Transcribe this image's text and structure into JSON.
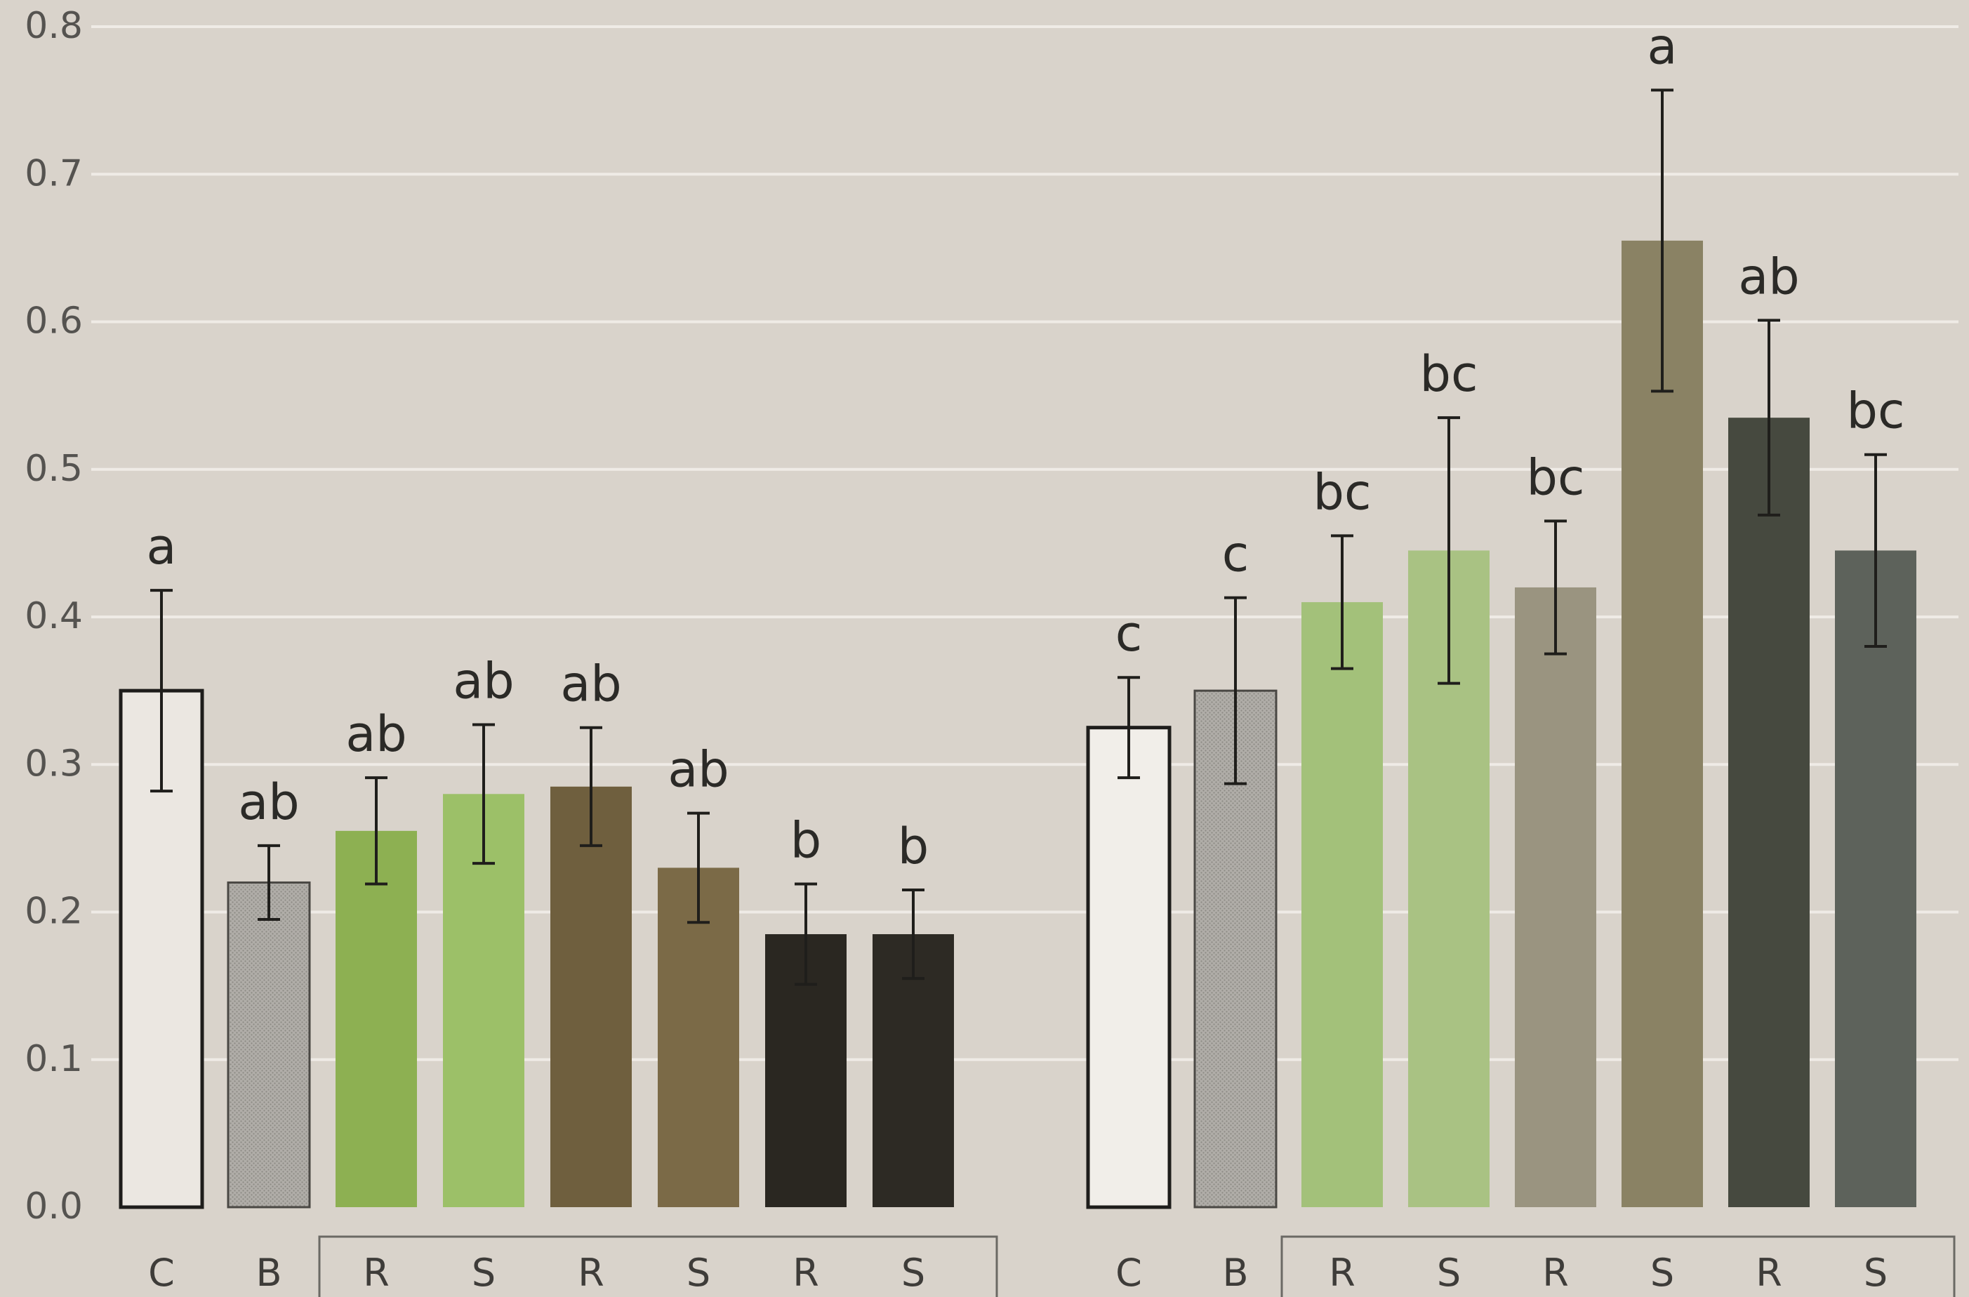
{
  "chart_data": [
    {
      "type": "bar",
      "panel": "left",
      "categories": [
        "C",
        "B",
        "R",
        "S",
        "R",
        "S",
        "R",
        "S"
      ],
      "values": [
        0.35,
        0.22,
        0.255,
        0.28,
        0.285,
        0.23,
        0.185,
        0.185
      ],
      "errors": [
        0.068,
        0.025,
        0.036,
        0.047,
        0.04,
        0.037,
        0.034,
        0.03
      ],
      "letters": [
        "a",
        "ab",
        "ab",
        "ab",
        "ab",
        "ab",
        "b",
        "b"
      ],
      "colors": [
        "#ebe7e1",
        "#a9a6a2",
        "#8db052",
        "#9cc068",
        "#6f5f3e",
        "#7b6a47",
        "#2a2721",
        "#2d2a24"
      ],
      "ylim": [
        0,
        0.8
      ],
      "ytick_labels": [
        "0.0",
        "0.1",
        "0.2",
        "0.3",
        "0.4",
        "0.5",
        "0.6",
        "0.7",
        "0.8"
      ],
      "grid": true,
      "title": "",
      "xlabel": "",
      "ylabel": ""
    },
    {
      "type": "bar",
      "panel": "right",
      "categories": [
        "C",
        "B",
        "R",
        "S",
        "R",
        "S",
        "R",
        "S"
      ],
      "values": [
        0.325,
        0.35,
        0.41,
        0.445,
        0.42,
        0.655,
        0.535,
        0.445
      ],
      "errors": [
        0.034,
        0.063,
        0.045,
        0.09,
        0.045,
        0.102,
        0.066,
        0.065
      ],
      "letters": [
        "c",
        "c",
        "bc",
        "bc",
        "bc",
        "a",
        "ab",
        "bc"
      ],
      "colors": [
        "#f1eee9",
        "#b3b1ad",
        "#a3c17a",
        "#a9c283",
        "#9a9480",
        "#8a8264",
        "#46493f",
        "#5d625b"
      ],
      "ylim": [
        0,
        0.8
      ],
      "grid": true,
      "title": "",
      "xlabel": "",
      "ylabel": ""
    }
  ]
}
